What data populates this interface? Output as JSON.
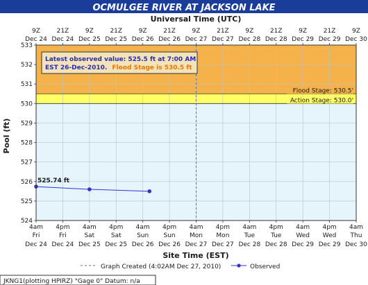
{
  "chart_data": {
    "type": "line",
    "title": "OCMULGEE RIVER AT JACKSON LAKE",
    "top_axis_label": "Universal Time (UTC)",
    "xlabel": "Site Time (EST)",
    "ylabel": "Pool (ft)",
    "ylim": [
      524,
      533
    ],
    "y_ticks": [
      "524",
      "525",
      "526",
      "527",
      "528",
      "529",
      "530",
      "531",
      "532",
      "533"
    ],
    "x_ticks_top": [
      {
        "time": "9Z",
        "date": "Dec 24"
      },
      {
        "time": "21Z",
        "date": "Dec 24"
      },
      {
        "time": "9Z",
        "date": "Dec 25"
      },
      {
        "time": "21Z",
        "date": "Dec 25"
      },
      {
        "time": "9Z",
        "date": "Dec 26"
      },
      {
        "time": "21Z",
        "date": "Dec 26"
      },
      {
        "time": "9Z",
        "date": "Dec 27"
      },
      {
        "time": "21Z",
        "date": "Dec 27"
      },
      {
        "time": "9Z",
        "date": "Dec 28"
      },
      {
        "time": "21Z",
        "date": "Dec 28"
      },
      {
        "time": "9Z",
        "date": "Dec 29"
      },
      {
        "time": "21Z",
        "date": "Dec 29"
      },
      {
        "time": "9Z",
        "date": "Dec 30"
      }
    ],
    "x_ticks_bottom": [
      {
        "time": "4am",
        "day": "Fri",
        "date": "Dec 24"
      },
      {
        "time": "4pm",
        "day": "Fri",
        "date": "Dec 24"
      },
      {
        "time": "4am",
        "day": "Sat",
        "date": "Dec 25"
      },
      {
        "time": "4pm",
        "day": "Sat",
        "date": "Dec 25"
      },
      {
        "time": "4am",
        "day": "Sun",
        "date": "Dec 26"
      },
      {
        "time": "4pm",
        "day": "Sun",
        "date": "Dec 26"
      },
      {
        "time": "4am",
        "day": "Mon",
        "date": "Dec 27"
      },
      {
        "time": "4pm",
        "day": "Mon",
        "date": "Dec 27"
      },
      {
        "time": "4am",
        "day": "Tue",
        "date": "Dec 28"
      },
      {
        "time": "4pm",
        "day": "Tue",
        "date": "Dec 28"
      },
      {
        "time": "4am",
        "day": "Wed",
        "date": "Dec 29"
      },
      {
        "time": "4pm",
        "day": "Wed",
        "date": "Dec 29"
      },
      {
        "time": "4am",
        "day": "Thu",
        "date": "Dec 30"
      }
    ],
    "series": [
      {
        "name": "Observed",
        "x": [
          "Dec 24 4:00am",
          "Dec 25 4:00am",
          "Dec 26 7:00am"
        ],
        "y": [
          525.74,
          525.6,
          525.5
        ],
        "color": "#3333cc"
      }
    ],
    "first_point_label": "525.74 ft",
    "stage_bands": [
      {
        "label": "Flood Stage: 530.5'",
        "from": 530.5,
        "to": 533,
        "color": "#f5b24a"
      },
      {
        "label": "Action Stage: 530.0'",
        "from": 530.0,
        "to": 530.5,
        "color": "#ffff66"
      }
    ],
    "graph_created_x": "Dec 27 4:02am",
    "info_box": {
      "line1": "Latest observed value: 525.5 ft at 7:00 AM",
      "line2_a": "EST 26-Dec-2010.",
      "line2_b": "Flood Stage is 530.5 ft",
      "line2_b_color": "#e87700"
    },
    "legend": {
      "graph_created": "Graph Created (4:02AM Dec 27, 2010)",
      "observed": "Observed"
    },
    "footer": "JKNG1(plotting HPIRZ) \"Gage 0\" Datum: n/a",
    "colors": {
      "title_bar": "#1a3d99",
      "plot_background": "#e6f5fb",
      "observed_line": "#3333cc"
    }
  }
}
